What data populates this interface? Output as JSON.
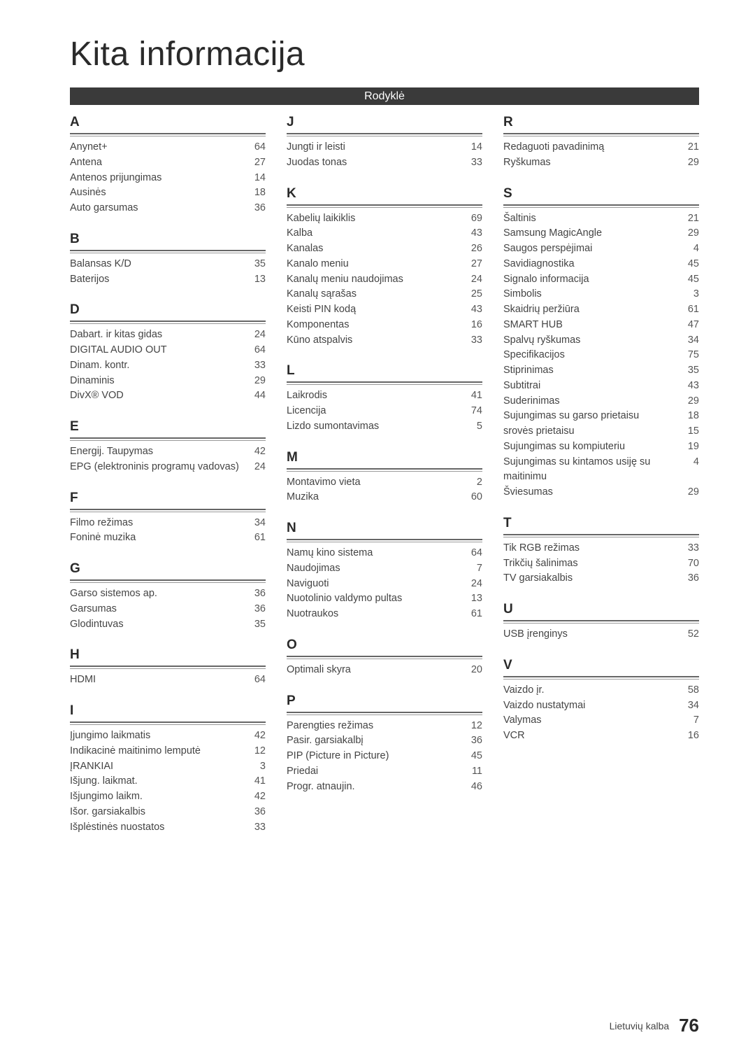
{
  "title": "Kita informacija",
  "band": "Rodyklė",
  "footer_lang": "Lietuvių kalba",
  "footer_page": "76",
  "columns": [
    [
      {
        "letter": "A",
        "items": [
          [
            "Anynet+",
            "64"
          ],
          [
            "Antena",
            "27"
          ],
          [
            "Antenos prijungimas",
            "14"
          ],
          [
            "Ausinės",
            "18"
          ],
          [
            "Auto garsumas",
            "36"
          ]
        ]
      },
      {
        "letter": "B",
        "items": [
          [
            "Balansas K/D",
            "35"
          ],
          [
            "Baterijos",
            "13"
          ]
        ]
      },
      {
        "letter": "D",
        "items": [
          [
            "Dabart. ir kitas gidas",
            "24"
          ],
          [
            "DIGITAL AUDIO OUT",
            "64"
          ],
          [
            "Dinam. kontr.",
            "33"
          ],
          [
            "Dinaminis",
            "29"
          ],
          [
            "DivX® VOD",
            "44"
          ]
        ]
      },
      {
        "letter": "E",
        "items": [
          [
            "Energij. Taupymas",
            "42"
          ],
          [
            "EPG (elektroninis programų vadovas)",
            "24"
          ]
        ]
      },
      {
        "letter": "F",
        "items": [
          [
            "Filmo režimas",
            "34"
          ],
          [
            "Foninė muzika",
            "61"
          ]
        ]
      },
      {
        "letter": "G",
        "items": [
          [
            "Garso sistemos ap.",
            "36"
          ],
          [
            "Garsumas",
            "36"
          ],
          [
            "Glodintuvas",
            "35"
          ]
        ]
      },
      {
        "letter": "H",
        "items": [
          [
            "HDMI",
            "64"
          ]
        ]
      },
      {
        "letter": "I",
        "items": [
          [
            "Įjungimo laikmatis",
            "42"
          ],
          [
            "Indikacinė maitinimo lemputė",
            "12"
          ],
          [
            "ĮRANKIAI",
            "3"
          ],
          [
            "Išjung. laikmat.",
            "41"
          ],
          [
            "Išjungimo laikm.",
            "42"
          ],
          [
            "Išor. garsiakalbis",
            "36"
          ],
          [
            "Išplėstinės nuostatos",
            "33"
          ]
        ]
      }
    ],
    [
      {
        "letter": "J",
        "items": [
          [
            "Jungti ir leisti",
            "14"
          ],
          [
            "Juodas tonas",
            "33"
          ]
        ]
      },
      {
        "letter": "K",
        "items": [
          [
            "Kabelių laikiklis",
            "69"
          ],
          [
            "Kalba",
            "43"
          ],
          [
            "Kanalas",
            "26"
          ],
          [
            "Kanalo meniu",
            "27"
          ],
          [
            "Kanalų meniu naudojimas",
            "24"
          ],
          [
            "Kanalų sąrašas",
            "25"
          ],
          [
            "Keisti PIN kodą",
            "43"
          ],
          [
            "Komponentas",
            "16"
          ],
          [
            "Kūno atspalvis",
            "33"
          ]
        ]
      },
      {
        "letter": "L",
        "items": [
          [
            "Laikrodis",
            "41"
          ],
          [
            "Licencija",
            "74"
          ],
          [
            "Lizdo sumontavimas",
            "5"
          ]
        ]
      },
      {
        "letter": "M",
        "items": [
          [
            "Montavimo vieta",
            "2"
          ],
          [
            "Muzika",
            "60"
          ]
        ]
      },
      {
        "letter": "N",
        "items": [
          [
            "Namų kino sistema",
            "64"
          ],
          [
            "Naudojimas",
            "7"
          ],
          [
            "Naviguoti",
            "24"
          ],
          [
            "Nuotolinio valdymo pultas",
            "13"
          ],
          [
            "Nuotraukos",
            "61"
          ]
        ]
      },
      {
        "letter": "O",
        "items": [
          [
            "Optimali skyra",
            "20"
          ]
        ]
      },
      {
        "letter": "P",
        "items": [
          [
            "Parengties režimas",
            "12"
          ],
          [
            "Pasir. garsiakalbį",
            "36"
          ],
          [
            "PIP (Picture in Picture)",
            "45"
          ],
          [
            "Priedai",
            "11"
          ],
          [
            "Progr. atnaujin.",
            "46"
          ]
        ]
      }
    ],
    [
      {
        "letter": "R",
        "items": [
          [
            "Redaguoti pavadinimą",
            "21"
          ],
          [
            "Ryškumas",
            "29"
          ]
        ]
      },
      {
        "letter": "S",
        "items": [
          [
            "Šaltinis",
            "21"
          ],
          [
            "Samsung MagicAngle",
            "29"
          ],
          [
            "Saugos perspėjimai",
            "4"
          ],
          [
            "Savidiagnostika",
            "45"
          ],
          [
            "Signalo informacija",
            "45"
          ],
          [
            "Simbolis",
            "3"
          ],
          [
            "Skaidrių peržiūra",
            "61"
          ],
          [
            "SMART HUB",
            "47"
          ],
          [
            "Spalvų ryškumas",
            "34"
          ],
          [
            "Specifikacijos",
            "75"
          ],
          [
            "Stiprinimas",
            "35"
          ],
          [
            "Subtitrai",
            "43"
          ],
          [
            "Suderinimas",
            "29"
          ],
          [
            "Sujungimas su garso prietaisu",
            "18"
          ],
          [
            "srovės prietaisu",
            "15"
          ],
          [
            "Sujungimas su kompiuteriu",
            "19"
          ],
          [
            "Sujungimas su kintamos usiję su maitinimu",
            "4"
          ],
          [
            "Šviesumas",
            "29"
          ]
        ]
      },
      {
        "letter": "T",
        "items": [
          [
            "Tik RGB režimas",
            "33"
          ],
          [
            "Trikčių šalinimas",
            "70"
          ],
          [
            "TV garsiakalbis",
            "36"
          ]
        ]
      },
      {
        "letter": "U",
        "items": [
          [
            "USB įrenginys",
            "52"
          ]
        ]
      },
      {
        "letter": "V",
        "items": [
          [
            "Vaizdo įr.",
            "58"
          ],
          [
            "Vaizdo nustatymai",
            "34"
          ],
          [
            "Valymas",
            "7"
          ],
          [
            "VCR",
            "16"
          ]
        ]
      }
    ]
  ]
}
